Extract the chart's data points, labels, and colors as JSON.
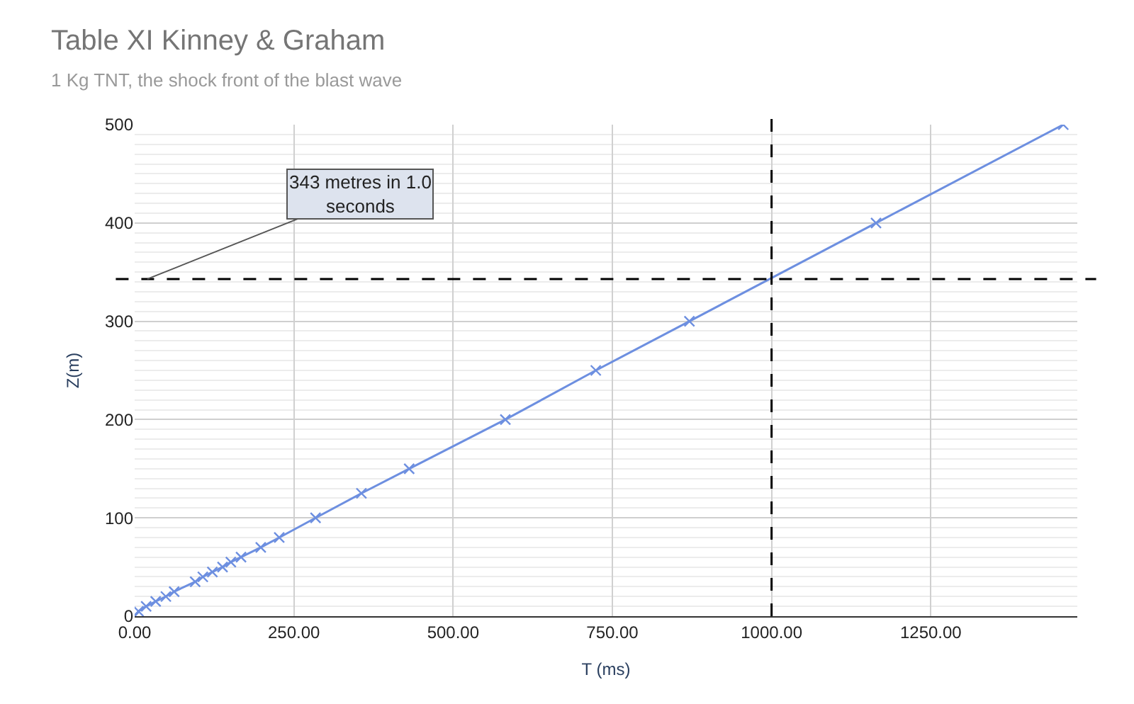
{
  "chart_data": {
    "type": "line",
    "title": "Table XI Kinney & Graham",
    "subtitle": "1 Kg TNT, the shock front of the blast wave",
    "xlabel": "T (ms)",
    "ylabel": "Z(m)",
    "x": [
      0,
      6,
      18,
      33,
      49,
      62,
      95,
      107,
      122,
      138,
      151,
      167,
      198,
      227,
      284,
      356,
      431,
      582,
      724,
      871,
      1164,
      1458
    ],
    "series": [
      {
        "color": "#6d8fe0",
        "values": [
          0,
          5,
          10,
          15,
          20,
          25,
          35,
          40,
          45,
          50,
          55,
          60,
          70,
          80,
          100,
          125,
          150,
          200,
          250,
          300,
          400,
          500
        ]
      }
    ],
    "xlim": [
      0,
      1480
    ],
    "xticks": [
      {
        "value": 0,
        "label": "0.00"
      },
      {
        "value": 250,
        "label": "250.00"
      },
      {
        "value": 500,
        "label": "500.00"
      },
      {
        "value": 750,
        "label": "750.00"
      },
      {
        "value": 1000,
        "label": "1000.00"
      },
      {
        "value": 1250,
        "label": "1250.00"
      }
    ],
    "ylim": [
      0,
      500
    ],
    "yticks": [
      0,
      100,
      200,
      300,
      400,
      500
    ],
    "grid": true,
    "marker": "cross",
    "line_style": "solid",
    "ref_lines": [
      {
        "axis": "x",
        "value": 1000,
        "color": "#000000",
        "line_style": "dashed"
      },
      {
        "axis": "y",
        "value": 343,
        "color": "#000000",
        "line_style": "dashed"
      }
    ],
    "annotations": [
      {
        "text": "343 metres in 1.0 seconds",
        "x": 20,
        "y": 343
      }
    ]
  }
}
